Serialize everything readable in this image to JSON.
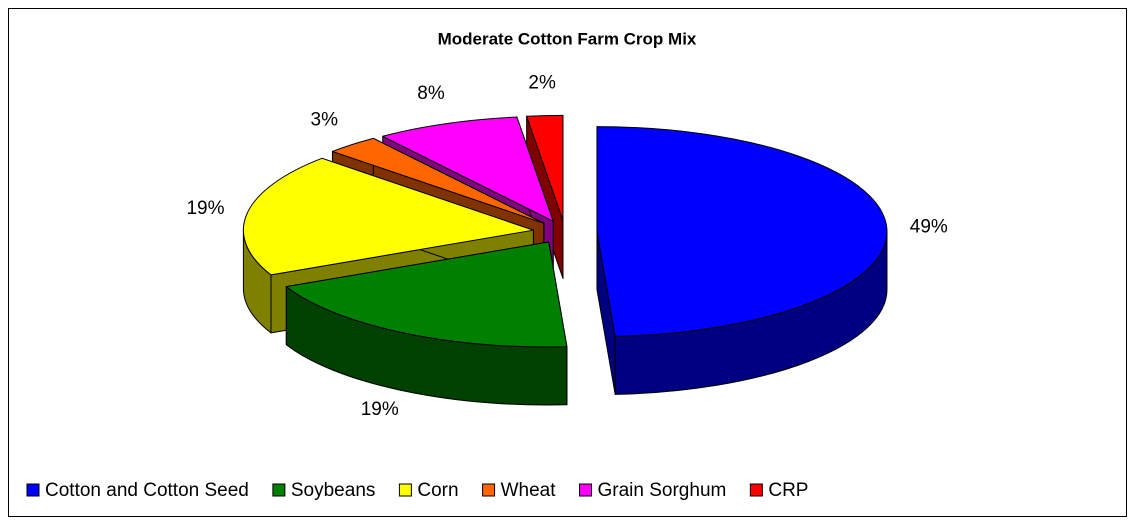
{
  "chart_data": {
    "type": "pie3d",
    "title": "Moderate Cotton Farm Crop Mix",
    "categories": [
      "Cotton and Cotton Seed",
      "Soybeans",
      "Corn",
      "Wheat",
      "Grain Sorghum",
      "CRP"
    ],
    "values": [
      49,
      19,
      19,
      3,
      8,
      2
    ],
    "value_labels": [
      "49%",
      "19%",
      "19%",
      "3%",
      "8%",
      "2%"
    ],
    "colors": [
      "#0000ff",
      "#008000",
      "#ffff00",
      "#ff6600",
      "#ff00ff",
      "#ff0000"
    ],
    "legend": "bottom"
  }
}
